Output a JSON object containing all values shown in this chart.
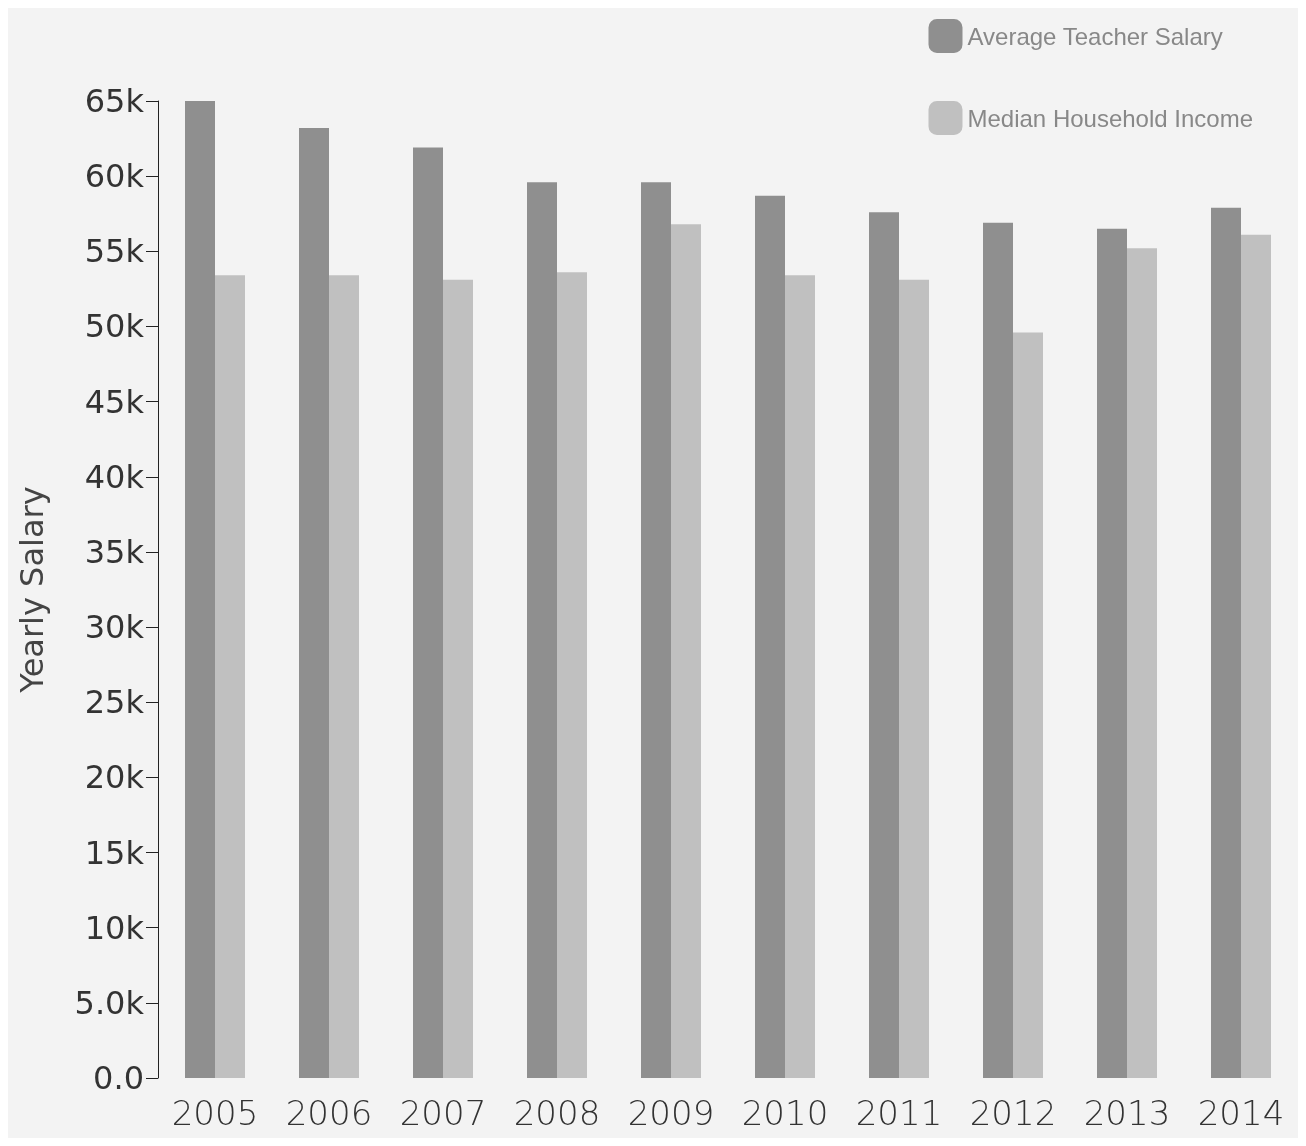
{
  "chart_data": {
    "type": "bar",
    "ylabel": "Yearly Salary",
    "categories": [
      "2005",
      "2006",
      "2007",
      "2008",
      "2009",
      "2010",
      "2011",
      "2012",
      "2013",
      "2014"
    ],
    "series": [
      {
        "name": "Average Teacher Salary",
        "color": "#8f8f8f",
        "values": [
          65.0,
          63.2,
          61.9,
          59.6,
          59.6,
          58.7,
          57.6,
          56.9,
          56.5,
          57.9
        ]
      },
      {
        "name": "Median Household Income",
        "color": "#c0c0c0",
        "values": [
          53.4,
          53.4,
          53.1,
          53.6,
          56.8,
          53.4,
          53.1,
          49.6,
          55.2,
          56.1
        ]
      }
    ],
    "ylim": [
      0,
      65
    ],
    "yticks": [
      {
        "value": 0,
        "label": "0.0"
      },
      {
        "value": 5,
        "label": "5.0k"
      },
      {
        "value": 10,
        "label": "10k"
      },
      {
        "value": 15,
        "label": "15k"
      },
      {
        "value": 20,
        "label": "20k"
      },
      {
        "value": 25,
        "label": "25k"
      },
      {
        "value": 30,
        "label": "30k"
      },
      {
        "value": 35,
        "label": "35k"
      },
      {
        "value": 40,
        "label": "40k"
      },
      {
        "value": 45,
        "label": "45k"
      },
      {
        "value": 50,
        "label": "50k"
      },
      {
        "value": 55,
        "label": "55k"
      },
      {
        "value": 60,
        "label": "60k"
      },
      {
        "value": 65,
        "label": "65k"
      }
    ],
    "grid": false,
    "legend": "top right"
  }
}
